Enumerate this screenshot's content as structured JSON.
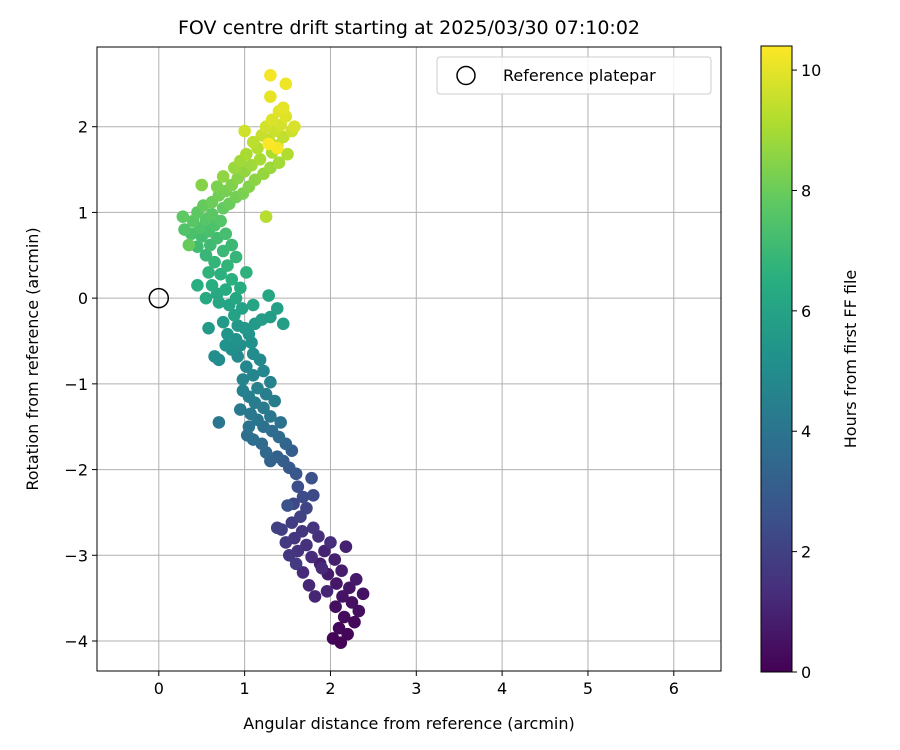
{
  "chart_data": {
    "type": "scatter",
    "title": "FOV centre drift starting at 2025/03/30 07:10:02",
    "xlabel": "Angular distance from reference (arcmin)",
    "ylabel": "Rotation from reference (arcmin)",
    "xlim": [
      -0.72,
      6.55
    ],
    "ylim": [
      -4.35,
      2.93
    ],
    "xticks": [
      "0",
      "1",
      "2",
      "3",
      "4",
      "5",
      "6"
    ],
    "yticks": [
      "−4",
      "−3",
      "−2",
      "−1",
      "0",
      "1",
      "2"
    ],
    "grid": true,
    "legend": {
      "position": "upper right",
      "entries": [
        "Reference platepar"
      ]
    },
    "reference_point": {
      "x": 0,
      "y": 0,
      "label": "Reference platepar"
    },
    "colorbar": {
      "label": "Hours from first FF file",
      "range": [
        0,
        10.4
      ],
      "ticks": [
        "0",
        "2",
        "4",
        "6",
        "8",
        "10"
      ],
      "colormap": "viridis"
    },
    "series": [
      {
        "points": [
          {
            "x": 2.12,
            "y": -4.02,
            "h": 0.05
          },
          {
            "x": 2.03,
            "y": -3.97,
            "h": 0.1
          },
          {
            "x": 2.2,
            "y": -3.92,
            "h": 0.15
          },
          {
            "x": 2.1,
            "y": -3.85,
            "h": 0.2
          },
          {
            "x": 2.28,
            "y": -3.78,
            "h": 0.25
          },
          {
            "x": 2.16,
            "y": -3.72,
            "h": 0.3
          },
          {
            "x": 2.33,
            "y": -3.65,
            "h": 0.35
          },
          {
            "x": 2.06,
            "y": -3.6,
            "h": 0.4
          },
          {
            "x": 2.25,
            "y": -3.55,
            "h": 0.45
          },
          {
            "x": 2.38,
            "y": -3.45,
            "h": 0.5
          },
          {
            "x": 2.14,
            "y": -3.48,
            "h": 0.55
          },
          {
            "x": 2.22,
            "y": -3.38,
            "h": 0.6
          },
          {
            "x": 2.07,
            "y": -3.33,
            "h": 0.65
          },
          {
            "x": 2.3,
            "y": -3.28,
            "h": 0.7
          },
          {
            "x": 1.97,
            "y": -3.22,
            "h": 0.75
          },
          {
            "x": 2.13,
            "y": -3.18,
            "h": 0.8
          },
          {
            "x": 1.88,
            "y": -3.1,
            "h": 0.85
          },
          {
            "x": 2.05,
            "y": -3.05,
            "h": 0.9
          },
          {
            "x": 2.18,
            "y": -2.9,
            "h": 0.95
          },
          {
            "x": 1.93,
            "y": -2.95,
            "h": 1.0
          },
          {
            "x": 1.82,
            "y": -3.48,
            "h": 1.05
          },
          {
            "x": 1.96,
            "y": -3.42,
            "h": 1.1
          },
          {
            "x": 1.75,
            "y": -3.35,
            "h": 1.15
          },
          {
            "x": 1.9,
            "y": -3.15,
            "h": 1.2
          },
          {
            "x": 1.68,
            "y": -3.2,
            "h": 1.25
          },
          {
            "x": 1.78,
            "y": -3.02,
            "h": 1.3
          },
          {
            "x": 2.0,
            "y": -2.85,
            "h": 1.35
          },
          {
            "x": 1.86,
            "y": -2.78,
            "h": 1.4
          },
          {
            "x": 1.72,
            "y": -2.88,
            "h": 1.45
          },
          {
            "x": 1.62,
            "y": -2.95,
            "h": 1.5
          },
          {
            "x": 1.8,
            "y": -2.68,
            "h": 1.55
          },
          {
            "x": 1.67,
            "y": -2.72,
            "h": 1.6
          },
          {
            "x": 1.58,
            "y": -2.8,
            "h": 1.65
          },
          {
            "x": 1.52,
            "y": -3.0,
            "h": 1.7
          },
          {
            "x": 1.6,
            "y": -3.1,
            "h": 1.75
          },
          {
            "x": 1.48,
            "y": -2.85,
            "h": 1.8
          },
          {
            "x": 1.55,
            "y": -2.62,
            "h": 1.85
          },
          {
            "x": 1.43,
            "y": -2.7,
            "h": 1.9
          },
          {
            "x": 1.38,
            "y": -2.68,
            "h": 1.95
          },
          {
            "x": 1.65,
            "y": -2.55,
            "h": 2.0
          },
          {
            "x": 1.72,
            "y": -2.45,
            "h": 2.1
          },
          {
            "x": 1.57,
            "y": -2.4,
            "h": 2.2
          },
          {
            "x": 1.8,
            "y": -2.3,
            "h": 2.3
          },
          {
            "x": 1.68,
            "y": -2.32,
            "h": 2.4
          },
          {
            "x": 1.62,
            "y": -2.2,
            "h": 2.5
          },
          {
            "x": 1.78,
            "y": -2.1,
            "h": 2.6
          },
          {
            "x": 1.5,
            "y": -2.42,
            "h": 2.7
          },
          {
            "x": 1.6,
            "y": -2.05,
            "h": 2.8
          },
          {
            "x": 1.52,
            "y": -1.98,
            "h": 2.9
          },
          {
            "x": 1.45,
            "y": -1.9,
            "h": 3.0
          },
          {
            "x": 1.55,
            "y": -1.78,
            "h": 3.1
          },
          {
            "x": 1.38,
            "y": -1.85,
            "h": 3.2
          },
          {
            "x": 1.3,
            "y": -1.9,
            "h": 3.3
          },
          {
            "x": 1.48,
            "y": -1.7,
            "h": 3.4
          },
          {
            "x": 1.25,
            "y": -1.8,
            "h": 3.5
          },
          {
            "x": 1.4,
            "y": -1.62,
            "h": 3.6
          },
          {
            "x": 1.2,
            "y": -1.7,
            "h": 3.65
          },
          {
            "x": 1.32,
            "y": -1.55,
            "h": 3.7
          },
          {
            "x": 1.1,
            "y": -1.65,
            "h": 3.75
          },
          {
            "x": 1.03,
            "y": -1.6,
            "h": 3.8
          },
          {
            "x": 1.22,
            "y": -1.5,
            "h": 3.85
          },
          {
            "x": 1.42,
            "y": -1.45,
            "h": 3.9
          },
          {
            "x": 1.05,
            "y": -1.5,
            "h": 3.95
          },
          {
            "x": 1.15,
            "y": -1.42,
            "h": 4.0
          },
          {
            "x": 0.7,
            "y": -1.45,
            "h": 4.05
          },
          {
            "x": 1.3,
            "y": -1.38,
            "h": 4.1
          },
          {
            "x": 1.07,
            "y": -1.35,
            "h": 4.15
          },
          {
            "x": 0.95,
            "y": -1.3,
            "h": 4.2
          },
          {
            "x": 1.22,
            "y": -1.28,
            "h": 4.25
          },
          {
            "x": 1.12,
            "y": -1.22,
            "h": 4.3
          },
          {
            "x": 1.35,
            "y": -1.2,
            "h": 4.35
          },
          {
            "x": 1.25,
            "y": -1.12,
            "h": 4.4
          },
          {
            "x": 1.05,
            "y": -1.15,
            "h": 4.45
          },
          {
            "x": 0.98,
            "y": -1.08,
            "h": 4.5
          },
          {
            "x": 1.15,
            "y": -1.05,
            "h": 4.55
          },
          {
            "x": 1.3,
            "y": -0.98,
            "h": 4.6
          },
          {
            "x": 0.98,
            "y": -0.95,
            "h": 4.65
          },
          {
            "x": 1.1,
            "y": -0.9,
            "h": 4.7
          },
          {
            "x": 1.22,
            "y": -0.85,
            "h": 4.75
          },
          {
            "x": 1.02,
            "y": -0.8,
            "h": 4.8
          },
          {
            "x": 1.18,
            "y": -0.72,
            "h": 4.85
          },
          {
            "x": 0.92,
            "y": -0.68,
            "h": 4.9
          },
          {
            "x": 0.7,
            "y": -0.72,
            "h": 4.95
          },
          {
            "x": 0.65,
            "y": -0.68,
            "h": 5.0
          },
          {
            "x": 1.1,
            "y": -0.65,
            "h": 5.05
          },
          {
            "x": 0.95,
            "y": -0.55,
            "h": 5.1
          },
          {
            "x": 0.85,
            "y": -0.6,
            "h": 5.15
          },
          {
            "x": 1.08,
            "y": -0.52,
            "h": 5.2
          },
          {
            "x": 0.78,
            "y": -0.55,
            "h": 5.25
          },
          {
            "x": 0.9,
            "y": -0.48,
            "h": 5.3
          },
          {
            "x": 1.05,
            "y": -0.42,
            "h": 5.35
          },
          {
            "x": 0.8,
            "y": -0.42,
            "h": 5.4
          },
          {
            "x": 1.0,
            "y": -0.35,
            "h": 5.45
          },
          {
            "x": 0.92,
            "y": -0.32,
            "h": 5.5
          },
          {
            "x": 1.12,
            "y": -0.3,
            "h": 5.55
          },
          {
            "x": 0.58,
            "y": -0.35,
            "h": 5.6
          },
          {
            "x": 0.75,
            "y": -0.28,
            "h": 5.65
          },
          {
            "x": 1.2,
            "y": -0.25,
            "h": 5.7
          },
          {
            "x": 1.3,
            "y": -0.22,
            "h": 5.75
          },
          {
            "x": 1.45,
            "y": -0.3,
            "h": 5.8
          },
          {
            "x": 1.38,
            "y": -0.12,
            "h": 5.85
          },
          {
            "x": 0.88,
            "y": -0.2,
            "h": 5.9
          },
          {
            "x": 0.97,
            "y": -0.12,
            "h": 5.95
          },
          {
            "x": 0.82,
            "y": -0.08,
            "h": 6.0
          },
          {
            "x": 1.1,
            "y": -0.08,
            "h": 6.05
          },
          {
            "x": 0.7,
            "y": -0.05,
            "h": 6.1
          },
          {
            "x": 1.28,
            "y": 0.03,
            "h": 6.15
          },
          {
            "x": 0.9,
            "y": 0.0,
            "h": 6.2
          },
          {
            "x": 0.68,
            "y": 0.05,
            "h": 6.25
          },
          {
            "x": 0.55,
            "y": 0.0,
            "h": 6.3
          },
          {
            "x": 0.78,
            "y": 0.1,
            "h": 6.35
          },
          {
            "x": 0.95,
            "y": 0.12,
            "h": 6.4
          },
          {
            "x": 0.62,
            "y": 0.15,
            "h": 6.45
          },
          {
            "x": 0.45,
            "y": 0.15,
            "h": 6.5
          },
          {
            "x": 0.85,
            "y": 0.22,
            "h": 6.55
          },
          {
            "x": 0.72,
            "y": 0.28,
            "h": 6.6
          },
          {
            "x": 1.02,
            "y": 0.3,
            "h": 6.65
          },
          {
            "x": 0.58,
            "y": 0.3,
            "h": 6.7
          },
          {
            "x": 0.8,
            "y": 0.38,
            "h": 6.75
          },
          {
            "x": 0.65,
            "y": 0.42,
            "h": 6.8
          },
          {
            "x": 0.9,
            "y": 0.48,
            "h": 6.85
          },
          {
            "x": 0.55,
            "y": 0.5,
            "h": 6.9
          },
          {
            "x": 0.75,
            "y": 0.55,
            "h": 6.95
          },
          {
            "x": 0.85,
            "y": 0.62,
            "h": 7.0
          },
          {
            "x": 0.6,
            "y": 0.62,
            "h": 7.05
          },
          {
            "x": 0.45,
            "y": 0.6,
            "h": 7.1
          },
          {
            "x": 0.68,
            "y": 0.7,
            "h": 7.15
          },
          {
            "x": 0.5,
            "y": 0.72,
            "h": 7.2
          },
          {
            "x": 0.78,
            "y": 0.75,
            "h": 7.25
          },
          {
            "x": 0.58,
            "y": 0.78,
            "h": 7.3
          },
          {
            "x": 0.38,
            "y": 0.75,
            "h": 7.35
          },
          {
            "x": 0.65,
            "y": 0.85,
            "h": 7.4
          },
          {
            "x": 0.48,
            "y": 0.82,
            "h": 7.45
          },
          {
            "x": 0.3,
            "y": 0.8,
            "h": 7.5
          },
          {
            "x": 0.72,
            "y": 0.9,
            "h": 7.55
          },
          {
            "x": 0.55,
            "y": 0.92,
            "h": 7.6
          },
          {
            "x": 0.4,
            "y": 0.9,
            "h": 7.65
          },
          {
            "x": 0.62,
            "y": 0.98,
            "h": 7.7
          },
          {
            "x": 0.45,
            "y": 1.0,
            "h": 7.75
          },
          {
            "x": 0.28,
            "y": 0.95,
            "h": 7.8
          },
          {
            "x": 0.75,
            "y": 1.05,
            "h": 7.85
          },
          {
            "x": 0.52,
            "y": 1.08,
            "h": 7.9
          },
          {
            "x": 0.35,
            "y": 0.62,
            "h": 7.95
          },
          {
            "x": 0.82,
            "y": 1.1,
            "h": 8.0
          },
          {
            "x": 0.62,
            "y": 1.12,
            "h": 8.05
          },
          {
            "x": 0.7,
            "y": 1.2,
            "h": 8.1
          },
          {
            "x": 0.9,
            "y": 1.18,
            "h": 8.15
          },
          {
            "x": 0.78,
            "y": 1.25,
            "h": 8.2
          },
          {
            "x": 0.98,
            "y": 1.22,
            "h": 8.25
          },
          {
            "x": 0.68,
            "y": 1.3,
            "h": 8.3
          },
          {
            "x": 0.85,
            "y": 1.32,
            "h": 8.35
          },
          {
            "x": 1.05,
            "y": 1.3,
            "h": 8.4
          },
          {
            "x": 0.5,
            "y": 1.32,
            "h": 8.45
          },
          {
            "x": 0.92,
            "y": 1.4,
            "h": 8.5
          },
          {
            "x": 1.12,
            "y": 1.38,
            "h": 8.55
          },
          {
            "x": 0.75,
            "y": 1.42,
            "h": 8.6
          },
          {
            "x": 1.0,
            "y": 1.48,
            "h": 8.65
          },
          {
            "x": 1.22,
            "y": 1.45,
            "h": 8.7
          },
          {
            "x": 0.88,
            "y": 1.52,
            "h": 8.75
          },
          {
            "x": 1.3,
            "y": 1.52,
            "h": 8.8
          },
          {
            "x": 1.08,
            "y": 1.55,
            "h": 8.85
          },
          {
            "x": 0.95,
            "y": 1.6,
            "h": 8.9
          },
          {
            "x": 1.4,
            "y": 1.58,
            "h": 8.95
          },
          {
            "x": 1.18,
            "y": 1.62,
            "h": 9.0
          },
          {
            "x": 1.02,
            "y": 1.68,
            "h": 9.05
          },
          {
            "x": 1.32,
            "y": 1.7,
            "h": 9.1
          },
          {
            "x": 1.5,
            "y": 1.68,
            "h": 9.15
          },
          {
            "x": 1.15,
            "y": 1.75,
            "h": 9.2
          },
          {
            "x": 1.25,
            "y": 0.95,
            "h": 9.25
          },
          {
            "x": 1.38,
            "y": 1.78,
            "h": 9.3
          },
          {
            "x": 1.1,
            "y": 1.82,
            "h": 9.35
          },
          {
            "x": 1.28,
            "y": 1.85,
            "h": 9.4
          },
          {
            "x": 1.45,
            "y": 1.88,
            "h": 9.45
          },
          {
            "x": 1.2,
            "y": 1.9,
            "h": 9.5
          },
          {
            "x": 1.35,
            "y": 1.95,
            "h": 9.55
          },
          {
            "x": 1.55,
            "y": 1.95,
            "h": 9.6
          },
          {
            "x": 1.0,
            "y": 1.95,
            "h": 9.65
          },
          {
            "x": 1.25,
            "y": 2.0,
            "h": 9.7
          },
          {
            "x": 1.42,
            "y": 2.02,
            "h": 9.75
          },
          {
            "x": 1.58,
            "y": 2.0,
            "h": 9.8
          },
          {
            "x": 1.32,
            "y": 2.08,
            "h": 9.85
          },
          {
            "x": 1.48,
            "y": 2.12,
            "h": 9.9
          },
          {
            "x": 1.4,
            "y": 2.18,
            "h": 9.95
          },
          {
            "x": 1.45,
            "y": 2.22,
            "h": 10.0
          },
          {
            "x": 1.3,
            "y": 2.35,
            "h": 10.05
          },
          {
            "x": 1.48,
            "y": 2.5,
            "h": 10.15
          },
          {
            "x": 1.3,
            "y": 2.6,
            "h": 10.25
          },
          {
            "x": 1.38,
            "y": 1.75,
            "h": 10.3
          },
          {
            "x": 1.28,
            "y": 1.8,
            "h": 10.35
          }
        ]
      }
    ]
  }
}
